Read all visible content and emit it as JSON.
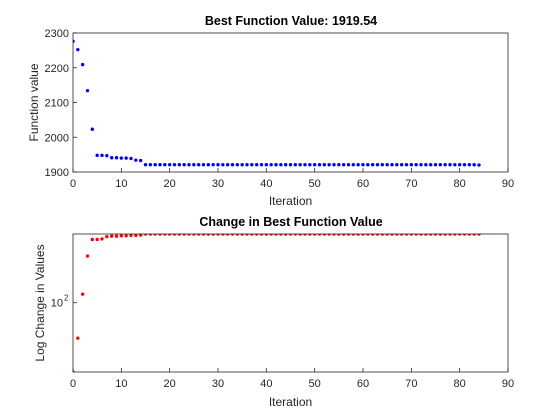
{
  "chart_data": [
    {
      "type": "scatter",
      "title": "Best Function Value: 1919.54",
      "xlabel": "Iteration",
      "ylabel": "Function value",
      "xlim": [
        0,
        90
      ],
      "ylim": [
        1900,
        2300
      ],
      "xticks": [
        0,
        10,
        20,
        30,
        40,
        50,
        60,
        70,
        80,
        90
      ],
      "xtick_labels": [
        "0",
        "10",
        "20",
        "30",
        "40",
        "50",
        "60",
        "70",
        "80",
        "90"
      ],
      "yticks": [
        1900,
        2000,
        2100,
        2200,
        2300
      ],
      "ytick_labels": [
        "1900",
        "2000",
        "2100",
        "2200",
        "2300"
      ],
      "yscale": "linear",
      "grid": false,
      "marker_color": "#0000ff",
      "series": [
        {
          "x": [
            0,
            1,
            2,
            3,
            4,
            5,
            6,
            7,
            8,
            9,
            10,
            11,
            12,
            13,
            14,
            15,
            16,
            17,
            18,
            19,
            20,
            21,
            22,
            23,
            24,
            25,
            26,
            27,
            28,
            29,
            30,
            31,
            32,
            33,
            34,
            35,
            36,
            37,
            38,
            39,
            40,
            41,
            42,
            43,
            44,
            45,
            46,
            47,
            48,
            49,
            50,
            51,
            52,
            53,
            54,
            55,
            56,
            57,
            58,
            59,
            60,
            61,
            62,
            63,
            64,
            65,
            66,
            67,
            68,
            69,
            70,
            71,
            72,
            73,
            74,
            75,
            76,
            77,
            78,
            79,
            80,
            81,
            82,
            83,
            84
          ],
          "values": [
            2276,
            2252,
            2209,
            2134,
            2023,
            1948,
            1948,
            1947,
            1941,
            1941,
            1940,
            1940,
            1939,
            1934,
            1933,
            1921,
            1921,
            1921,
            1921,
            1921,
            1921,
            1921,
            1921,
            1921,
            1921,
            1921,
            1921,
            1921,
            1921,
            1921,
            1921,
            1921,
            1921,
            1921,
            1921,
            1921,
            1921,
            1921,
            1921,
            1921,
            1921,
            1921,
            1921,
            1921,
            1921,
            1921,
            1921,
            1921,
            1921,
            1921,
            1921,
            1921,
            1921,
            1921,
            1921,
            1921,
            1921,
            1921,
            1921,
            1921,
            1921,
            1921,
            1921,
            1921,
            1921,
            1921,
            1921,
            1921,
            1921,
            1921,
            1921,
            1921,
            1921,
            1921,
            1921,
            1921,
            1921,
            1921,
            1921,
            1921,
            1921,
            1921,
            1921,
            1921,
            1920
          ]
        }
      ]
    },
    {
      "type": "scatter",
      "title": "Change in Best Function Value",
      "xlabel": "Iteration",
      "ylabel": "Log Change in Values",
      "xlim": [
        0,
        90
      ],
      "ylim": [
        30,
        330
      ],
      "xticks": [
        0,
        10,
        20,
        30,
        40,
        50,
        60,
        70,
        80,
        90
      ],
      "xtick_labels": [
        "0",
        "10",
        "20",
        "30",
        "40",
        "50",
        "60",
        "70",
        "80",
        "90"
      ],
      "yticks": [
        100
      ],
      "ytick_labels": [
        "10",
        "2"
      ],
      "yscale": "log",
      "grid": false,
      "marker_color": "#ff0000",
      "series": [
        {
          "x": [
            0,
            1,
            2,
            3,
            4,
            5,
            6,
            7,
            8,
            9,
            10,
            11,
            12,
            13,
            14,
            15,
            16,
            17,
            18,
            19,
            20,
            21,
            22,
            23,
            24,
            25,
            26,
            27,
            28,
            29,
            30,
            31,
            32,
            33,
            34,
            35,
            36,
            37,
            38,
            39,
            40,
            41,
            42,
            43,
            44,
            45,
            46,
            47,
            48,
            49,
            50,
            51,
            52,
            53,
            54,
            55,
            56,
            57,
            58,
            59,
            60,
            61,
            62,
            63,
            64,
            65,
            66,
            67,
            68,
            69,
            70,
            71,
            72,
            73,
            74,
            75,
            76,
            77,
            78,
            79,
            80,
            81,
            82,
            83,
            84
          ],
          "values": [
            30,
            54,
            116,
            225,
            300,
            300,
            303,
            315,
            318,
            318,
            320,
            320,
            322,
            322,
            324,
            330,
            330,
            330,
            330,
            330,
            330,
            330,
            330,
            330,
            330,
            330,
            330,
            330,
            330,
            330,
            330,
            330,
            330,
            330,
            330,
            330,
            330,
            330,
            330,
            330,
            330,
            330,
            330,
            330,
            330,
            330,
            330,
            330,
            330,
            330,
            330,
            330,
            330,
            330,
            330,
            330,
            330,
            330,
            330,
            330,
            330,
            330,
            330,
            330,
            330,
            330,
            330,
            330,
            330,
            330,
            330,
            330,
            330,
            330,
            330,
            330,
            330,
            330,
            330,
            330,
            330,
            330,
            330,
            330,
            330
          ]
        }
      ]
    }
  ]
}
